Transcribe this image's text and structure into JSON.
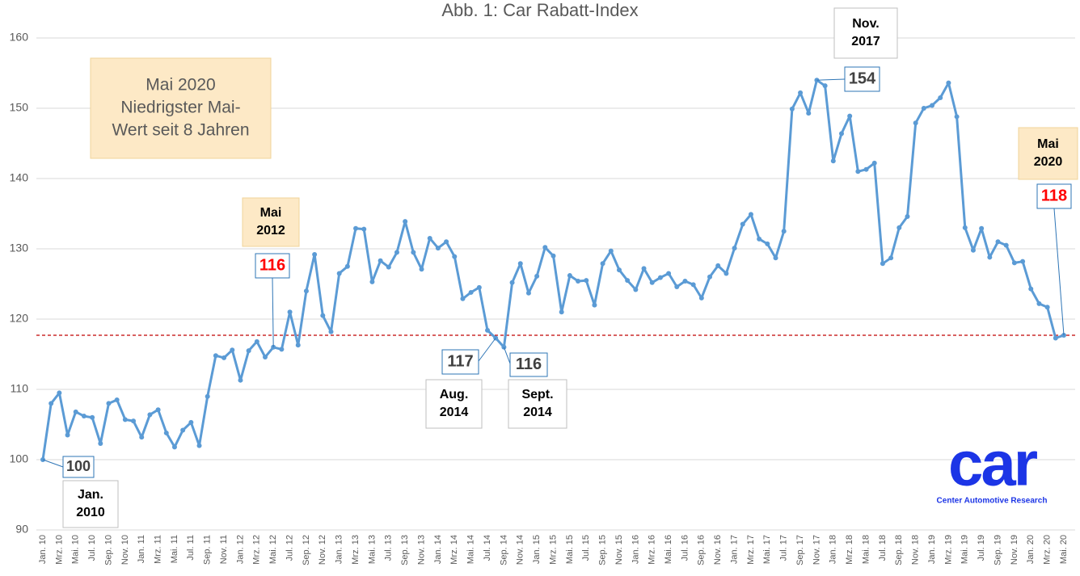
{
  "chart_data": {
    "type": "line",
    "title": "Abb. 1: Car Rabatt-Index",
    "categories": [
      "Jan. 10",
      null,
      "Mrz. 10",
      null,
      "Mai. 10",
      null,
      "Jul. 10",
      null,
      "Sep. 10",
      null,
      "Nov. 10",
      null,
      "Jan. 11",
      null,
      "Mrz. 11",
      null,
      "Mai. 11",
      null,
      "Jul. 11",
      null,
      "Sep. 11",
      null,
      "Nov. 11",
      null,
      "Jan. 12",
      null,
      "Mrz. 12",
      null,
      "Mai. 12",
      null,
      "Jul. 12",
      null,
      "Sep. 12",
      null,
      "Nov. 12",
      null,
      "Jan. 13",
      null,
      "Mrz. 13",
      null,
      "Mai. 13",
      null,
      "Jul. 13",
      null,
      "Sep. 13",
      null,
      "Nov. 13",
      null,
      "Jan. 14",
      null,
      "Mrz. 14",
      null,
      "Mai. 14",
      null,
      "Jul. 14",
      null,
      "Sep. 14",
      null,
      "Nov. 14",
      null,
      "Jan. 15",
      null,
      "Mrz. 15",
      null,
      "Mai. 15",
      null,
      "Jul. 15",
      null,
      "Sep. 15",
      null,
      "Nov. 15",
      null,
      "Jan. 16",
      null,
      "Mrz. 16",
      null,
      "Mai. 16",
      null,
      "Jul. 16",
      null,
      "Sep. 16",
      null,
      "Nov. 16",
      null,
      "Jan. 17",
      null,
      "Mrz. 17",
      null,
      "Mai. 17",
      null,
      "Jul. 17",
      null,
      "Sep. 17",
      null,
      "Nov. 17",
      null,
      "Jan. 18",
      null,
      "Mrz. 18",
      null,
      "Mai. 18",
      null,
      "Jul. 18",
      null,
      "Sep. 18",
      null,
      "Nov. 18",
      null,
      "Jan. 19",
      null,
      "Mrz. 19",
      null,
      "Mai. 19",
      null,
      "Jul. 19",
      null,
      "Sep. 19",
      null,
      "Nov. 19",
      null,
      "Jan. 20",
      null,
      "Mrz. 20",
      null,
      "Mai. 20"
    ],
    "series": [
      {
        "name": "Car Rabatt-Index",
        "color": "#5b9bd5",
        "values": [
          100,
          108,
          109.5,
          103.5,
          106.8,
          106.2,
          106,
          102.3,
          108,
          108.5,
          105.7,
          105.5,
          103.2,
          106.4,
          107.1,
          103.8,
          101.8,
          104.2,
          105.3,
          102,
          109,
          114.8,
          114.5,
          115.6,
          111.3,
          115.5,
          116.8,
          114.6,
          116,
          115.7,
          121,
          116.3,
          124,
          129.2,
          120.5,
          118.2,
          126.5,
          127.5,
          132.9,
          132.8,
          125.3,
          128.3,
          127.4,
          129.5,
          133.9,
          129.5,
          127.1,
          131.5,
          130.1,
          131,
          128.9,
          122.9,
          123.8,
          124.5,
          118.4,
          117.3,
          116,
          125.2,
          127.9,
          123.7,
          126.1,
          130.2,
          129,
          121,
          126.2,
          125.4,
          125.5,
          122,
          127.9,
          129.7,
          127,
          125.5,
          124.2,
          127.2,
          125.2,
          125.9,
          126.5,
          124.6,
          125.4,
          124.9,
          123,
          126,
          127.6,
          126.5,
          130.1,
          133.5,
          134.9,
          131.4,
          130.7,
          128.7,
          132.5,
          149.9,
          152.2,
          149.3,
          154,
          153.2,
          142.5,
          146.4,
          148.9,
          141,
          141.3,
          142.2,
          127.9,
          128.7,
          133,
          134.6,
          147.9,
          150,
          150.4,
          151.5,
          153.6,
          148.8,
          133,
          129.8,
          132.9,
          128.8,
          131,
          130.5,
          128,
          128.2,
          124.3,
          122.2,
          121.7,
          117.3,
          117.7
        ]
      }
    ],
    "ylim": [
      90,
      160
    ],
    "yticks": [
      90,
      100,
      110,
      120,
      130,
      140,
      150,
      160
    ],
    "grid": true,
    "reference_line": {
      "value": 117.7,
      "color": "#c00000"
    },
    "annotations": [
      {
        "lines": [
          "Mai 2020",
          "Niedrigster Mai-",
          "Wert seit 8 Jahren"
        ]
      },
      {
        "lines": [
          "100"
        ]
      },
      {
        "lines": [
          "Jan.",
          "2010"
        ]
      },
      {
        "lines": [
          "Mai",
          "2012"
        ]
      },
      {
        "lines": [
          "116"
        ],
        "color": "#ff0000"
      },
      {
        "lines": [
          "117"
        ]
      },
      {
        "lines": [
          "Aug.",
          "2014"
        ]
      },
      {
        "lines": [
          "116"
        ]
      },
      {
        "lines": [
          "Sept.",
          "2014"
        ]
      },
      {
        "lines": [
          "Nov.",
          "2017"
        ]
      },
      {
        "lines": [
          "154"
        ]
      },
      {
        "lines": [
          "Mai",
          "2020"
        ]
      },
      {
        "lines": [
          "118"
        ],
        "color": "#ff0000"
      }
    ],
    "logo": {
      "mark": "car",
      "caption": "Center Automotive Research"
    }
  }
}
